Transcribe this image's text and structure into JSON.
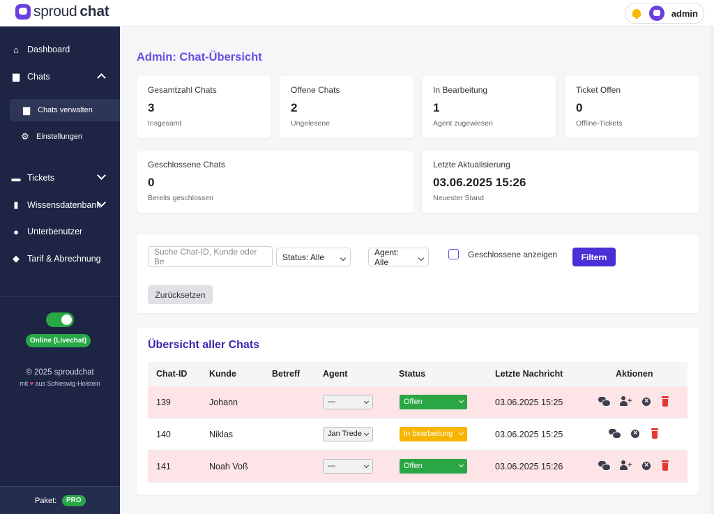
{
  "brand": {
    "part1": "sproud",
    "part2": "chat"
  },
  "topbar": {
    "username": "admin"
  },
  "sidebar": {
    "items": [
      {
        "label": "Dashboard",
        "icon": "home-icon"
      },
      {
        "label": "Chats",
        "icon": "chats-icon"
      },
      {
        "label": "Chats verwalten",
        "icon": "chats-icon"
      },
      {
        "label": "Einstellungen",
        "icon": "gear-icon"
      },
      {
        "label": "Tickets",
        "icon": "ticket-icon"
      },
      {
        "label": "Wissensdatenbank",
        "icon": "book-icon"
      },
      {
        "label": "Unterbenutzer",
        "icon": "users-icon"
      },
      {
        "label": "Tarif & Abrechnung",
        "icon": "tag-icon"
      }
    ],
    "online_status": "Online (Livechat)",
    "copyright": "© 2025 sproudchat",
    "made_with_prefix": "mit",
    "made_with_suffix": "aus Schleswig-Holstein",
    "paket_label": "Paket:",
    "paket_value": "PRO"
  },
  "page": {
    "title": "Admin: Chat-Übersicht"
  },
  "stats": [
    {
      "label": "Gesamtzahl Chats",
      "value": "3",
      "sub": "Insgesamt"
    },
    {
      "label": "Offene Chats",
      "value": "2",
      "sub": "Ungelesene"
    },
    {
      "label": "In Bearbeitung",
      "value": "1",
      "sub": "Agent zugewiesen"
    },
    {
      "label": "Ticket Offen",
      "value": "0",
      "sub": "Offline-Tickets"
    },
    {
      "label": "Geschlossene Chats",
      "value": "0",
      "sub": "Bereits geschlossen"
    },
    {
      "label": "Letzte Aktualisierung",
      "value": "03.06.2025 15:26",
      "sub": "Neuester Stand"
    }
  ],
  "filters": {
    "search_placeholder": "Suche Chat-ID, Kunde oder Be",
    "status_select": "Status: Alle",
    "agent_select": "Agent: Alle",
    "show_closed_label": "Geschlossene anzeigen",
    "filter_button": "Filtern",
    "reset_button": "Zurücksetzen"
  },
  "table": {
    "title": "Übersicht aller Chats",
    "headers": [
      "Chat-ID",
      "Kunde",
      "Betreff",
      "Agent",
      "Status",
      "Letzte Nachricht",
      "Aktionen"
    ],
    "rows": [
      {
        "id": "139",
        "kunde": "Johann",
        "betreff": "",
        "agent": "—",
        "status": "Offen",
        "letzte": "03.06.2025 15:25"
      },
      {
        "id": "140",
        "kunde": "Niklas",
        "betreff": "",
        "agent": "Jan Trede",
        "status": "In bearbeitung",
        "letzte": "03.06.2025 15:25"
      },
      {
        "id": "141",
        "kunde": "Noah Voß",
        "betreff": "",
        "agent": "—",
        "status": "Offen",
        "letzte": "03.06.2025 15:26"
      }
    ]
  },
  "colors": {
    "accent": "#6c4ee0",
    "sidebar": "#1d2444",
    "success": "#2aa744",
    "warning": "#f7b500",
    "danger": "#e53935"
  }
}
